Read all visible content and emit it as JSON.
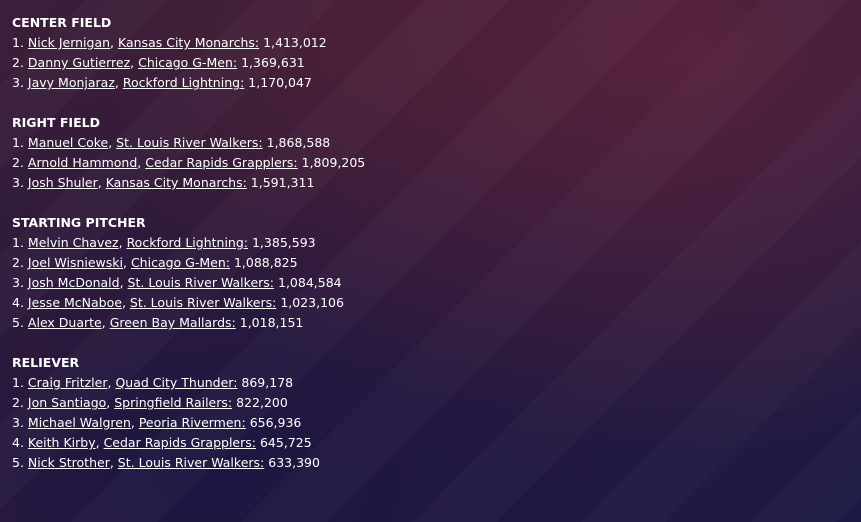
{
  "sections": [
    {
      "title": "CENTER FIELD",
      "entries": [
        {
          "rank": "1.",
          "player": "Nick Jernigan",
          "team": "Kansas City Monarchs",
          "votes": "1,413,012"
        },
        {
          "rank": "2.",
          "player": "Danny Gutierrez",
          "team": "Chicago G-Men",
          "votes": "1,369,631"
        },
        {
          "rank": "3.",
          "player": "Javy Monjaraz",
          "team": "Rockford Lightning",
          "votes": "1,170,047"
        }
      ]
    },
    {
      "title": "RIGHT FIELD",
      "entries": [
        {
          "rank": "1.",
          "player": "Manuel Coke",
          "team": "St. Louis River Walkers",
          "votes": "1,868,588"
        },
        {
          "rank": "2.",
          "player": "Arnold Hammond",
          "team": "Cedar Rapids Grapplers",
          "votes": "1,809,205"
        },
        {
          "rank": "3.",
          "player": "Josh Shuler",
          "team": "Kansas City Monarchs",
          "votes": "1,591,311"
        }
      ]
    },
    {
      "title": "STARTING PITCHER",
      "entries": [
        {
          "rank": "1.",
          "player": "Melvin Chavez",
          "team": "Rockford Lightning",
          "votes": "1,385,593"
        },
        {
          "rank": "2.",
          "player": "Joel Wisniewski",
          "team": "Chicago G-Men",
          "votes": "1,088,825"
        },
        {
          "rank": "3.",
          "player": "Josh McDonald",
          "team": "St. Louis River Walkers",
          "votes": "1,084,584"
        },
        {
          "rank": "4.",
          "player": "Jesse McNaboe",
          "team": "St. Louis River Walkers",
          "votes": "1,023,106"
        },
        {
          "rank": "5.",
          "player": "Alex Duarte",
          "team": "Green Bay  Mallards",
          "votes": "1,018,151"
        }
      ]
    },
    {
      "title": "RELIEVER",
      "entries": [
        {
          "rank": "1.",
          "player": "Craig Fritzler",
          "team": "Quad City Thunder",
          "votes": "869,178"
        },
        {
          "rank": "2.",
          "player": "Jon Santiago",
          "team": "Springfield Railers",
          "votes": "822,200"
        },
        {
          "rank": "3.",
          "player": "Michael Walgren",
          "team": "Peoria Rivermen",
          "votes": "656,936"
        },
        {
          "rank": "4.",
          "player": "Keith Kirby",
          "team": "Cedar Rapids Grapplers",
          "votes": "645,725"
        },
        {
          "rank": "5.",
          "player": "Nick Strother",
          "team": "St. Louis River Walkers",
          "votes": "633,390"
        }
      ]
    }
  ]
}
